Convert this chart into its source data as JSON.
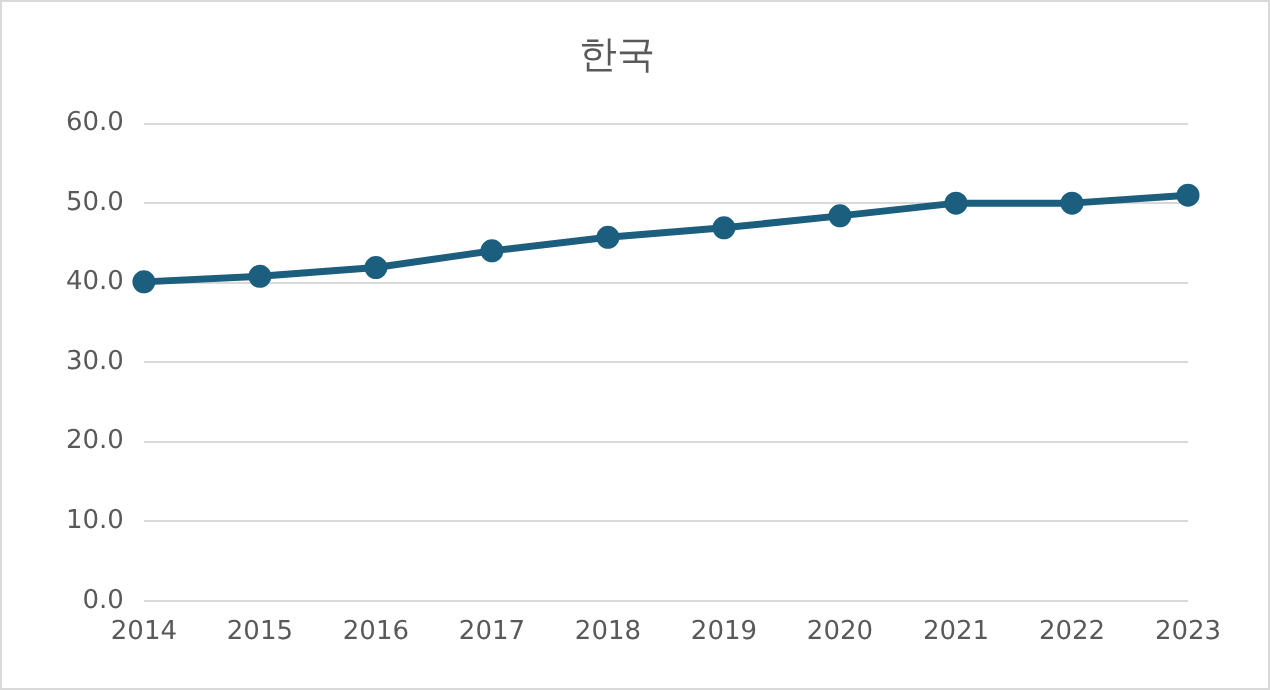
{
  "chart_data": {
    "type": "line",
    "title": "한국",
    "categories": [
      "2014",
      "2015",
      "2016",
      "2017",
      "2018",
      "2019",
      "2020",
      "2021",
      "2022",
      "2023"
    ],
    "series": [
      {
        "color": "#1b5e7e",
        "values": [
          40.1,
          40.8,
          41.9,
          44.0,
          45.7,
          46.9,
          48.4,
          50.0,
          50.0,
          51.0
        ]
      }
    ],
    "ylim": [
      0,
      60
    ],
    "yticks": [
      {
        "value": 0,
        "label": "0.0"
      },
      {
        "value": 10,
        "label": "10.0"
      },
      {
        "value": 20,
        "label": "20.0"
      },
      {
        "value": 30,
        "label": "30.0"
      },
      {
        "value": 40,
        "label": "40.0"
      },
      {
        "value": 50,
        "label": "50.0"
      },
      {
        "value": 60,
        "label": "60.0"
      }
    ],
    "grid": "y",
    "legend": false,
    "marker": "circle",
    "line_style": "solid"
  }
}
